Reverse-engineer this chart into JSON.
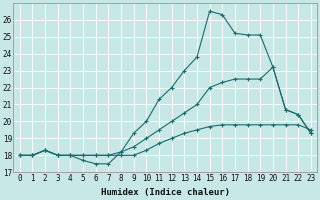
{
  "background_color": "#c8e8e8",
  "grid_color": "#ffffff",
  "line_color": "#1a6b6b",
  "xlabel": "Humidex (Indice chaleur)",
  "ylim": [
    17,
    27
  ],
  "xlim": [
    -0.5,
    23.5
  ],
  "yticks": [
    17,
    18,
    19,
    20,
    21,
    22,
    23,
    24,
    25,
    26
  ],
  "xticks": [
    0,
    1,
    2,
    3,
    4,
    5,
    6,
    7,
    8,
    9,
    10,
    11,
    12,
    13,
    14,
    15,
    16,
    17,
    18,
    19,
    20,
    21,
    22,
    23
  ],
  "line1_x": [
    0,
    1,
    2,
    3,
    4,
    5,
    6,
    7,
    8,
    9,
    10,
    11,
    12,
    13,
    14,
    15,
    16,
    17,
    18,
    19,
    20,
    21,
    22,
    23
  ],
  "line1_y": [
    18,
    18,
    18.3,
    18,
    18,
    17.7,
    17.5,
    17.5,
    18.2,
    19.3,
    20,
    21.3,
    22,
    23,
    23.8,
    26.5,
    26.3,
    25.2,
    25.1,
    25.1,
    23.2,
    20.7,
    20.4,
    19.3
  ],
  "line2_x": [
    0,
    1,
    2,
    3,
    4,
    5,
    6,
    7,
    8,
    9,
    10,
    11,
    12,
    13,
    14,
    15,
    16,
    17,
    18,
    19,
    20,
    21,
    22,
    23
  ],
  "line2_y": [
    18,
    18,
    18.3,
    18,
    18,
    18,
    18,
    18,
    18,
    18,
    18.3,
    18.7,
    19.0,
    19.3,
    19.5,
    19.7,
    19.8,
    19.8,
    19.8,
    19.8,
    19.8,
    19.8,
    19.8,
    19.5
  ],
  "line3_x": [
    0,
    1,
    2,
    3,
    4,
    5,
    6,
    7,
    8,
    9,
    10,
    11,
    12,
    13,
    14,
    15,
    16,
    17,
    18,
    19,
    20,
    21,
    22,
    23
  ],
  "line3_y": [
    18,
    18,
    18.3,
    18,
    18,
    18,
    18,
    18,
    18.2,
    18.5,
    19.0,
    19.5,
    20.0,
    20.5,
    21.0,
    22.0,
    22.3,
    22.5,
    22.5,
    22.5,
    23.2,
    20.7,
    20.4,
    19.3
  ]
}
